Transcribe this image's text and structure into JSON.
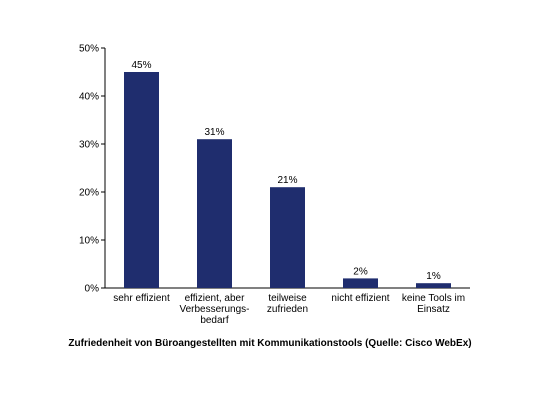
{
  "caption": "Zufriedenheit von Büroangestellten mit Kommunikationstools (Quelle: Cisco WebEx)",
  "chart_data": {
    "type": "bar",
    "categories": [
      [
        "sehr effizient"
      ],
      [
        "effizient, aber",
        "Verbesserungs-",
        "bedarf"
      ],
      [
        "teilweise",
        "zufrieden"
      ],
      [
        "nicht effizient"
      ],
      [
        "keine Tools im",
        "Einsatz"
      ]
    ],
    "values": [
      45,
      31,
      21,
      2,
      1
    ],
    "data_labels": [
      "45%",
      "31%",
      "21%",
      "2%",
      "1%"
    ],
    "ylim": [
      0,
      50
    ],
    "yticks": [
      0,
      10,
      20,
      30,
      40,
      50
    ],
    "ytick_labels": [
      "0%",
      "10%",
      "20%",
      "30%",
      "40%",
      "50%"
    ],
    "xlabel": "",
    "ylabel": "",
    "grid": false,
    "bar_color": "#1f2d6e"
  }
}
